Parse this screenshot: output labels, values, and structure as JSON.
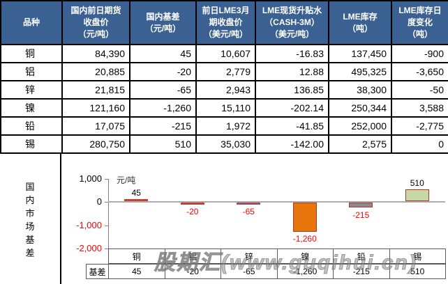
{
  "table": {
    "headers": [
      {
        "lines": [
          "品种"
        ]
      },
      {
        "lines": [
          "国内前日期货",
          "收盘价",
          "（元/吨）"
        ]
      },
      {
        "lines": [
          "国内基差",
          "（元/吨）"
        ]
      },
      {
        "lines": [
          "前日LME3月",
          "期收盘价",
          "（美元/吨）"
        ]
      },
      {
        "lines": [
          "LME现货升贴水",
          "（CASH-3M）",
          "（美元/吨）"
        ]
      },
      {
        "lines": [
          "LME库存",
          "（吨）"
        ]
      },
      {
        "lines": [
          "LME库存日",
          "度变化",
          "（吨）"
        ]
      }
    ],
    "rows": [
      {
        "name": "铜",
        "values": [
          "84,390",
          "45",
          "10,607",
          "-16.83",
          "137,450",
          "-900"
        ]
      },
      {
        "name": "铝",
        "values": [
          "20,885",
          "-20",
          "2,779",
          "12.88",
          "495,325",
          "-3,650"
        ]
      },
      {
        "name": "锌",
        "values": [
          "21,815",
          "-65",
          "2,943",
          "136.85",
          "38,300",
          "-50"
        ]
      },
      {
        "name": "镍",
        "values": [
          "121,160",
          "-1,260",
          "15,110",
          "-202.14",
          "250,344",
          "3,588"
        ]
      },
      {
        "name": "铅",
        "values": [
          "17,075",
          "-215",
          "1,972",
          "-41.85",
          "252,000",
          "-2,775"
        ]
      },
      {
        "name": "锡",
        "values": [
          "280,750",
          "510",
          "35,030",
          "-142.00",
          "2,575",
          "0"
        ]
      }
    ]
  },
  "section_label": "国内市场基差",
  "chart_data": {
    "type": "bar",
    "title": "",
    "unit_label": "元/吨",
    "categories": [
      "铜",
      "铝",
      "锌",
      "镍",
      "铅",
      "锡"
    ],
    "category_keys": [
      "copper",
      "aluminum",
      "zinc",
      "nickel",
      "lead",
      "tin"
    ],
    "series_label": "基差",
    "values": [
      45,
      -20,
      -65,
      -1260,
      -215,
      510
    ],
    "value_labels": [
      "45",
      "-20",
      "-65",
      "-1,260",
      "-215",
      "510"
    ],
    "ylim": [
      -2000,
      1000
    ],
    "yticks": [
      1000,
      0,
      -1000,
      -2000
    ],
    "ytick_labels": [
      "1,000",
      "0",
      "-1,000",
      "-2,000"
    ],
    "bar_colors": [
      "#C0452F",
      "#BE4336",
      "#A24E5E",
      "#E8740C",
      "#8B8B8B",
      "#C8D8A4"
    ],
    "bar_border_color": "#A6392B",
    "grid": false,
    "legend_position": "none"
  },
  "watermark": "股期汇(www.guqihui.cn)",
  "colors": {
    "header_bg": "#3A6191",
    "negative_text": "#FF0000",
    "zero_line": "#ADADAD"
  }
}
